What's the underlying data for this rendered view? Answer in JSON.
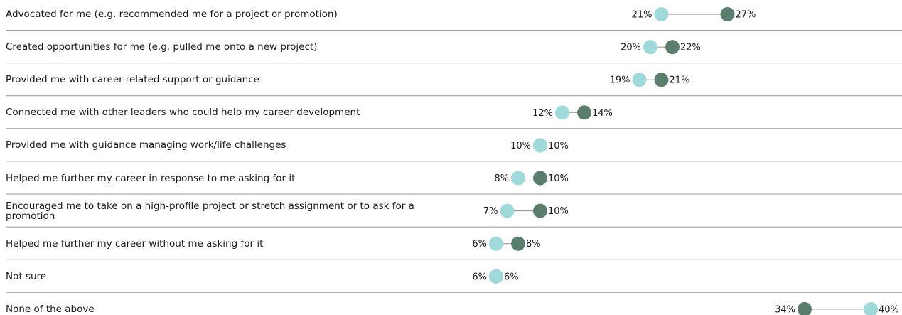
{
  "chart_data": {
    "type": "dumbbell",
    "categories": [
      "Advocated for me (e.g. recommended me for a project or promotion)",
      "Created opportunities for me (e.g. pulled me onto a new project)",
      "Provided me with career-related support or guidance",
      "Connected me with other leaders who could help my career development",
      "Provided me with guidance managing work/life challenges",
      "Helped me further my career in response to me asking for it",
      "Encouraged me to take on a high-profile project or stretch assignment or to ask for a promotion",
      "Helped me further my career without me asking for it",
      "Not sure",
      "None of the above"
    ],
    "series": [
      {
        "color": "#9fd9da",
        "values": [
          21,
          20,
          19,
          12,
          10,
          8,
          7,
          6,
          6,
          40
        ],
        "value_labels": [
          "21%",
          "20%",
          "19%",
          "12%",
          "10%",
          "8%",
          "7%",
          "6%",
          "6%",
          "40%"
        ]
      },
      {
        "color": "#5b7e6c",
        "values": [
          27,
          22,
          21,
          14,
          10,
          10,
          10,
          8,
          6,
          34
        ],
        "value_labels": [
          "27%",
          "22%",
          "21%",
          "14%",
          "10%",
          "10%",
          "10%",
          "8%",
          "6%",
          "34%"
        ]
      }
    ],
    "xlim": [
      0,
      42
    ]
  }
}
